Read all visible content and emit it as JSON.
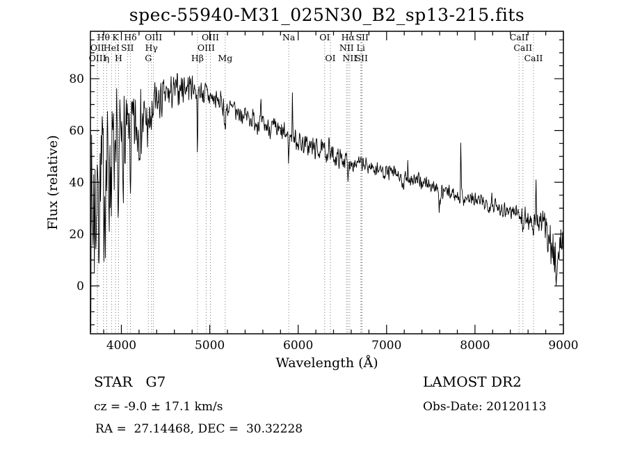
{
  "title": "spec-55940-M31_025N30_B2_sp13-215.fits",
  "footer": {
    "object_type": "STAR   G7",
    "survey": "LAMOST DR2",
    "cz": "cz = -9.0 ± 17.1 km/s",
    "obs_date": "Obs-Date: 20120113",
    "coords": "RA =  27.14468, DEC =  30.32228"
  },
  "chart_data": {
    "type": "line",
    "title": "spec-55940-M31_025N30_B2_sp13-215.fits",
    "xlabel": "Wavelength (Å)",
    "ylabel": "Flux (relative)",
    "xlim": [
      3650,
      9000
    ],
    "ylim": [
      -18.5,
      98.3
    ],
    "xticks": [
      4000,
      5000,
      6000,
      7000,
      8000,
      9000
    ],
    "yticks": [
      0,
      20,
      40,
      60,
      80
    ],
    "x_minor_step": 200,
    "y_minor_step": 5,
    "grid": false,
    "line_color": "#000000",
    "marker_color": "#777777",
    "noise_seed": 7,
    "spectral_lines": [
      {
        "label": "Hθ",
        "wl": 3798,
        "row": 0
      },
      {
        "label": "K",
        "wl": 3934,
        "row": 0
      },
      {
        "label": "Hδ",
        "wl": 4102,
        "row": 0
      },
      {
        "label": "OIII",
        "wl": 4363,
        "row": 0
      },
      {
        "label": "OIII",
        "wl": 5007,
        "row": 0
      },
      {
        "label": "Na",
        "wl": 5893,
        "row": 0
      },
      {
        "label": "OI",
        "wl": 6300,
        "row": 0
      },
      {
        "label": "Hα",
        "wl": 6563,
        "row": 0
      },
      {
        "label": "SII",
        "wl": 6724,
        "row": 0
      },
      {
        "label": "CaII",
        "wl": 8498,
        "row": 0
      },
      {
        "label": "OII",
        "wl": 3727,
        "row": 1
      },
      {
        "label": "HeI",
        "wl": 3889,
        "row": 1
      },
      {
        "label": "SII",
        "wl": 4069,
        "row": 1
      },
      {
        "label": "Hγ",
        "wl": 4340,
        "row": 1
      },
      {
        "label": "OIII",
        "wl": 4959,
        "row": 1
      },
      {
        "label": "NII",
        "wl": 6548,
        "row": 1
      },
      {
        "label": "Li",
        "wl": 6708,
        "row": 1
      },
      {
        "label": "CaII",
        "wl": 8542,
        "row": 1
      },
      {
        "label": "OIII",
        "wl": 3730,
        "row": 2
      },
      {
        "label": "η",
        "wl": 3835,
        "row": 2
      },
      {
        "label": "H",
        "wl": 3968,
        "row": 2
      },
      {
        "label": "G",
        "wl": 4305,
        "row": 2
      },
      {
        "label": "Hβ",
        "wl": 4861,
        "row": 2
      },
      {
        "label": "Mg",
        "wl": 5175,
        "row": 2
      },
      {
        "label": "OI",
        "wl": 6364,
        "row": 2
      },
      {
        "label": "NII",
        "wl": 6583,
        "row": 2
      },
      {
        "label": "SII",
        "wl": 6716,
        "row": 2
      },
      {
        "label": "CaII",
        "wl": 8662,
        "row": 2
      }
    ],
    "spectrum_envelope": [
      [
        3650,
        25,
        38
      ],
      [
        3700,
        32,
        36
      ],
      [
        3750,
        38,
        33
      ],
      [
        3800,
        42,
        30
      ],
      [
        3850,
        45,
        28
      ],
      [
        3900,
        48,
        26
      ],
      [
        3950,
        50,
        24
      ],
      [
        4000,
        54,
        20
      ],
      [
        4100,
        58,
        16
      ],
      [
        4200,
        62,
        13
      ],
      [
        4300,
        65,
        11
      ],
      [
        4400,
        70,
        9
      ],
      [
        4500,
        73,
        7
      ],
      [
        4600,
        75,
        6
      ],
      [
        4700,
        77,
        6
      ],
      [
        4800,
        77,
        5
      ],
      [
        4900,
        75,
        5
      ],
      [
        5000,
        73,
        5
      ],
      [
        5100,
        71,
        4.5
      ],
      [
        5200,
        69,
        4.5
      ],
      [
        5300,
        67,
        4
      ],
      [
        5400,
        66,
        4
      ],
      [
        5500,
        64,
        4
      ],
      [
        5600,
        62,
        4
      ],
      [
        5700,
        61,
        4
      ],
      [
        5800,
        59,
        4
      ],
      [
        5900,
        58,
        4
      ],
      [
        6000,
        56,
        4
      ],
      [
        6100,
        54,
        4
      ],
      [
        6200,
        53,
        4
      ],
      [
        6300,
        52,
        3.5
      ],
      [
        6400,
        50,
        3.5
      ],
      [
        6500,
        49,
        3.5
      ],
      [
        6600,
        48,
        3.5
      ],
      [
        6700,
        47,
        3
      ],
      [
        6800,
        46,
        3
      ],
      [
        6900,
        45,
        3
      ],
      [
        7000,
        44,
        3
      ],
      [
        7100,
        43,
        3
      ],
      [
        7200,
        42,
        3
      ],
      [
        7300,
        41,
        3
      ],
      [
        7400,
        40,
        3
      ],
      [
        7500,
        39,
        3
      ],
      [
        7600,
        37,
        3
      ],
      [
        7700,
        36,
        3
      ],
      [
        7800,
        35,
        3
      ],
      [
        7900,
        34,
        3
      ],
      [
        8000,
        33,
        3
      ],
      [
        8100,
        32,
        3
      ],
      [
        8200,
        31,
        3
      ],
      [
        8300,
        30,
        3
      ],
      [
        8400,
        29,
        3.5
      ],
      [
        8500,
        28,
        3.5
      ],
      [
        8600,
        26,
        4
      ],
      [
        8700,
        25,
        4.5
      ],
      [
        8800,
        23,
        6
      ],
      [
        8850,
        18,
        8
      ],
      [
        8900,
        8,
        10
      ],
      [
        8950,
        12,
        10
      ],
      [
        9000,
        20,
        6
      ]
    ],
    "features": {
      "absorption": [
        {
          "wl": 3797,
          "d": 10,
          "w": 6
        },
        {
          "wl": 3934,
          "d": 22,
          "w": 8
        },
        {
          "wl": 3968,
          "d": 18,
          "w": 7
        },
        {
          "wl": 4102,
          "d": 14,
          "w": 7
        },
        {
          "wl": 4305,
          "d": 10,
          "w": 8
        },
        {
          "wl": 4340,
          "d": 10,
          "w": 6
        },
        {
          "wl": 4861,
          "d": 20,
          "w": 7
        },
        {
          "wl": 5175,
          "d": 9,
          "w": 10
        },
        {
          "wl": 5893,
          "d": 8,
          "w": 7
        },
        {
          "wl": 6563,
          "d": 9,
          "w": 6
        },
        {
          "wl": 7180,
          "d": 5,
          "w": 18
        },
        {
          "wl": 7600,
          "d": 6,
          "w": 20
        },
        {
          "wl": 8542,
          "d": 7,
          "w": 8
        },
        {
          "wl": 8662,
          "d": 7,
          "w": 8
        }
      ],
      "emission": [
        {
          "wl": 5577,
          "h": 8,
          "w": 4
        },
        {
          "wl": 5935,
          "h": 17,
          "w": 5
        },
        {
          "wl": 6350,
          "h": 6,
          "w": 4
        },
        {
          "wl": 7240,
          "h": 7,
          "w": 4
        },
        {
          "wl": 7840,
          "h": 19,
          "w": 5
        },
        {
          "wl": 8190,
          "h": 7,
          "w": 4
        },
        {
          "wl": 8690,
          "h": 18,
          "w": 4
        }
      ]
    }
  }
}
